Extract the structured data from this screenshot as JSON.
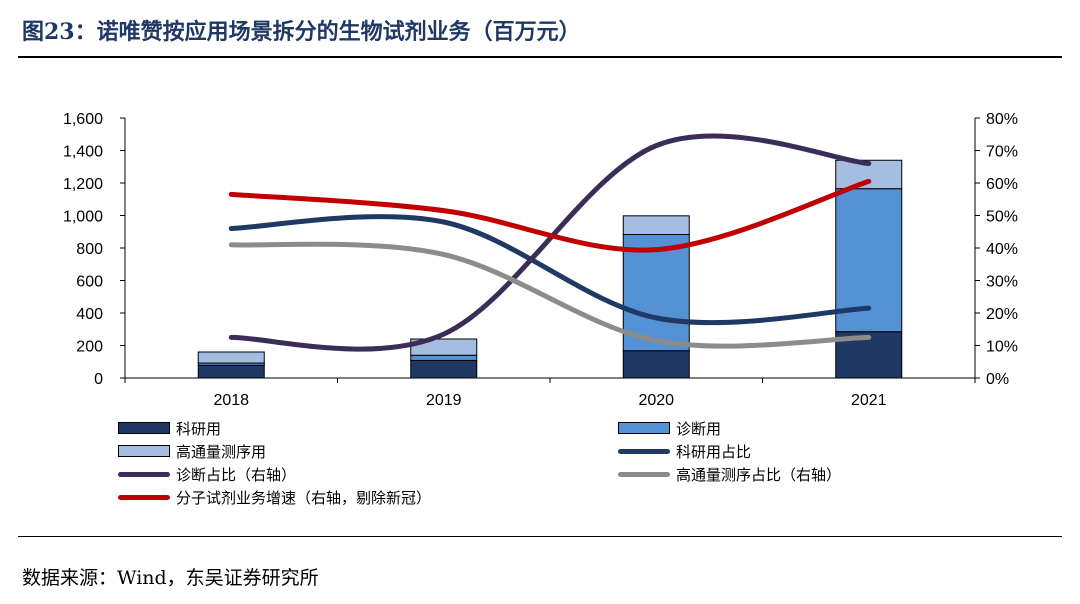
{
  "header": {
    "title": "图23：诺唯赞按应用场景拆分的生物试剂业务（百万元）"
  },
  "footer": {
    "source": "数据来源：Wind，东吴证券研究所"
  },
  "chart_data": {
    "type": "bar",
    "stacked": true,
    "categories": [
      "2018",
      "2019",
      "2020",
      "2021"
    ],
    "y_left": {
      "min": 0,
      "max": 1600,
      "step": 200,
      "tick_labels": [
        "0",
        "200",
        "400",
        "600",
        "800",
        "1,000",
        "1,200",
        "1,400",
        "1,600"
      ]
    },
    "y_right": {
      "min": 0,
      "max": 80,
      "step": 10,
      "tick_labels": [
        "0%",
        "10%",
        "20%",
        "30%",
        "40%",
        "50%",
        "60%",
        "70%",
        "80%"
      ]
    },
    "bar_series": [
      {
        "name": "科研用",
        "values": [
          78,
          108,
          168,
          285
        ],
        "color": "#1f3864"
      },
      {
        "name": "诊断用",
        "values": [
          14,
          32,
          715,
          880
        ],
        "color": "#5591d5"
      },
      {
        "name": "高通量测序用",
        "values": [
          68,
          100,
          115,
          175
        ],
        "color": "#a5bde0"
      }
    ],
    "line_series": [
      {
        "name": "科研用占比",
        "axis": "left",
        "values": [
          920,
          960,
          370,
          430
        ],
        "color": "#1f3864"
      },
      {
        "name": "诊断占比（右轴）",
        "axis": "right",
        "values": [
          12.5,
          13.5,
          71.5,
          66
        ],
        "color": "#3b2d58"
      },
      {
        "name": "高通量测序占比（右轴）",
        "axis": "right",
        "values": [
          41,
          38,
          11.5,
          12.5
        ],
        "color": "#8c8c8c"
      },
      {
        "name": "分子试剂业务增速（右轴，剔除新冠）",
        "axis": "right",
        "values": [
          56.5,
          51.5,
          39.5,
          60.5
        ],
        "color": "#c00000"
      }
    ],
    "legend": [
      {
        "label": "科研用",
        "kind": "box",
        "color": "#1f3864"
      },
      {
        "label": "诊断用",
        "kind": "box",
        "color": "#5591d5"
      },
      {
        "label": "高通量测序用",
        "kind": "box",
        "color": "#a5bde0"
      },
      {
        "label": "科研用占比",
        "kind": "line",
        "color": "#1f3864"
      },
      {
        "label": "诊断占比（右轴）",
        "kind": "line",
        "color": "#3b2d58"
      },
      {
        "label": "高通量测序占比（右轴）",
        "kind": "line",
        "color": "#8c8c8c"
      },
      {
        "label": "分子试剂业务增速（右轴，剔除新冠）",
        "kind": "line",
        "color": "#c00000"
      }
    ]
  }
}
